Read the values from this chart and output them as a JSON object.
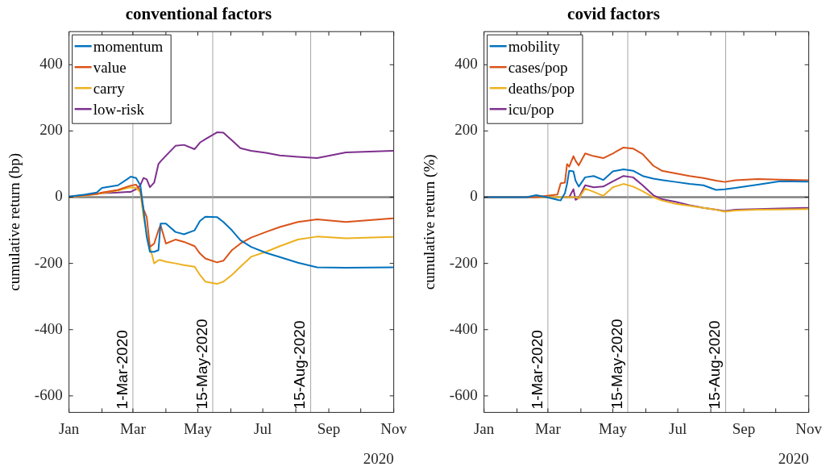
{
  "chart_data": [
    {
      "type": "line",
      "title": "conventional factors",
      "ylabel": "cumulative return (bp)",
      "xlabel": "2020",
      "x": [
        "2020-01-01",
        "2020-01-16",
        "2020-01-27",
        "2020-02-01",
        "2020-02-16",
        "2020-02-25",
        "2020-02-28",
        "2020-03-04",
        "2020-03-08",
        "2020-03-11",
        "2020-03-14",
        "2020-03-17",
        "2020-03-21",
        "2020-03-25",
        "2020-03-27",
        "2020-04-01",
        "2020-04-10",
        "2020-04-18",
        "2020-04-28",
        "2020-05-03",
        "2020-05-08",
        "2020-05-19",
        "2020-05-25",
        "2020-06-02",
        "2020-06-10",
        "2020-06-20",
        "2020-07-04",
        "2020-07-17",
        "2020-08-03",
        "2020-08-21",
        "2020-09-17",
        "2020-10-31"
      ],
      "series": [
        {
          "name": "momentum",
          "color": "#0072bd",
          "values": [
            2,
            8,
            14,
            28,
            36,
            55,
            62,
            58,
            36,
            -40,
            -120,
            -165,
            -165,
            -160,
            -80,
            -80,
            -105,
            -112,
            -100,
            -72,
            -59,
            -60,
            -75,
            -100,
            -130,
            -150,
            -168,
            -181,
            -198,
            -212,
            -213,
            -212
          ]
        },
        {
          "name": "value",
          "color": "#d95319",
          "values": [
            1,
            6,
            10,
            14,
            22,
            32,
            35,
            38,
            20,
            -36,
            -60,
            -150,
            -140,
            -100,
            -84,
            -140,
            -128,
            -135,
            -148,
            -170,
            -185,
            -197,
            -192,
            -160,
            -140,
            -122,
            -105,
            -90,
            -75,
            -67,
            -75,
            -64
          ]
        },
        {
          "name": "carry",
          "color": "#edb120",
          "values": [
            0,
            5,
            9,
            12,
            20,
            28,
            30,
            28,
            15,
            -60,
            -110,
            -150,
            -200,
            -190,
            -190,
            -195,
            -200,
            -205,
            -210,
            -235,
            -255,
            -262,
            -255,
            -235,
            -210,
            -180,
            -165,
            -148,
            -128,
            -119,
            -124,
            -120
          ]
        },
        {
          "name": "low-risk",
          "color": "#7e2f8e",
          "values": [
            null,
            null,
            10,
            12,
            14,
            16,
            16,
            24,
            36,
            58,
            54,
            30,
            44,
            100,
            108,
            125,
            155,
            158,
            145,
            165,
            175,
            196,
            195,
            172,
            148,
            140,
            134,
            126,
            122,
            118,
            135,
            140
          ]
        }
      ],
      "xlim": [
        "2020-01-01",
        "2020-11-01"
      ],
      "xticks": [
        {
          "value": "2020-01-01",
          "label": "Jan"
        },
        {
          "value": "2020-02-01",
          "label": null
        },
        {
          "value": "2020-03-01",
          "label": "Mar"
        },
        {
          "value": "2020-04-01",
          "label": null
        },
        {
          "value": "2020-05-01",
          "label": "May"
        },
        {
          "value": "2020-06-01",
          "label": null
        },
        {
          "value": "2020-07-01",
          "label": "Jul"
        },
        {
          "value": "2020-08-01",
          "label": null
        },
        {
          "value": "2020-09-01",
          "label": "Sep"
        },
        {
          "value": "2020-10-01",
          "label": null
        },
        {
          "value": "2020-11-01",
          "label": "Nov"
        }
      ],
      "ylim": [
        -650,
        500
      ],
      "yticks": [
        -600,
        -400,
        -200,
        0,
        200,
        400
      ],
      "ref_lines": [
        {
          "axis": "y",
          "value": 0,
          "color": "#808080"
        },
        {
          "axis": "x",
          "value": "2020-03-01",
          "label": "1-Mar-2020",
          "color": "#a6a6a6"
        },
        {
          "axis": "x",
          "value": "2020-05-15",
          "label": "15-May-2020",
          "color": "#a6a6a6"
        },
        {
          "axis": "x",
          "value": "2020-08-15",
          "label": "15-Aug-2020",
          "color": "#a6a6a6"
        }
      ],
      "grid": false,
      "legend": "top left",
      "marker": "none",
      "line_style": "solid"
    },
    {
      "type": "line",
      "title": "covid factors",
      "ylabel": "cumulative return (%)",
      "xlabel": "2020",
      "x": [
        "2020-01-01",
        "2020-02-10",
        "2020-02-19",
        "2020-02-29",
        "2020-03-10",
        "2020-03-13",
        "2020-03-17",
        "2020-03-19",
        "2020-03-21",
        "2020-03-25",
        "2020-03-27",
        "2020-03-30",
        "2020-04-05",
        "2020-04-13",
        "2020-04-22",
        "2020-05-01",
        "2020-05-11",
        "2020-05-20",
        "2020-05-29",
        "2020-06-08",
        "2020-06-16",
        "2020-06-29",
        "2020-07-12",
        "2020-07-25",
        "2020-08-06",
        "2020-08-14",
        "2020-08-24",
        "2020-09-14",
        "2020-10-05",
        "2020-10-31"
      ],
      "series": [
        {
          "name": "mobility",
          "color": "#0072bd",
          "values": [
            0,
            0,
            6,
            0,
            -8,
            -10,
            12,
            40,
            80,
            78,
            50,
            32,
            60,
            64,
            52,
            78,
            84,
            80,
            64,
            56,
            52,
            46,
            40,
            36,
            22,
            24,
            28,
            38,
            48,
            47
          ]
        },
        {
          "name": "cases/pop",
          "color": "#d95319",
          "values": [
            0,
            0,
            0,
            4,
            8,
            42,
            44,
            100,
            92,
            124,
            110,
            96,
            132,
            124,
            118,
            132,
            150,
            147,
            130,
            95,
            80,
            72,
            64,
            58,
            50,
            46,
            51,
            55,
            53,
            51
          ]
        },
        {
          "name": "deaths/pop",
          "color": "#edb120",
          "values": [
            null,
            null,
            0,
            0,
            0,
            0,
            0,
            0,
            0,
            0,
            0,
            -4,
            26,
            16,
            4,
            30,
            40,
            32,
            18,
            0,
            -10,
            -20,
            -26,
            -32,
            -38,
            -44,
            -40,
            -38,
            -37,
            -36
          ]
        },
        {
          "name": "icu/pop",
          "color": "#7e2f8e",
          "values": [
            null,
            null,
            null,
            null,
            null,
            null,
            0,
            0,
            0,
            24,
            -8,
            -2,
            36,
            30,
            32,
            48,
            64,
            60,
            36,
            6,
            -6,
            -14,
            -24,
            -32,
            -38,
            -42,
            -38,
            -36,
            -34,
            -32
          ]
        }
      ],
      "xlim": [
        "2020-01-01",
        "2020-11-01"
      ],
      "xticks": [
        {
          "value": "2020-01-01",
          "label": "Jan"
        },
        {
          "value": "2020-02-01",
          "label": null
        },
        {
          "value": "2020-03-01",
          "label": "Mar"
        },
        {
          "value": "2020-04-01",
          "label": null
        },
        {
          "value": "2020-05-01",
          "label": "May"
        },
        {
          "value": "2020-06-01",
          "label": null
        },
        {
          "value": "2020-07-01",
          "label": "Jul"
        },
        {
          "value": "2020-08-01",
          "label": null
        },
        {
          "value": "2020-09-01",
          "label": "Sep"
        },
        {
          "value": "2020-10-01",
          "label": null
        },
        {
          "value": "2020-11-01",
          "label": "Nov"
        }
      ],
      "ylim": [
        -650,
        500
      ],
      "yticks": [
        -600,
        -400,
        -200,
        0,
        200,
        400
      ],
      "ref_lines": [
        {
          "axis": "y",
          "value": 0,
          "color": "#808080"
        },
        {
          "axis": "x",
          "value": "2020-03-01",
          "label": "1-Mar-2020",
          "color": "#a6a6a6"
        },
        {
          "axis": "x",
          "value": "2020-05-15",
          "label": "15-May-2020",
          "color": "#a6a6a6"
        },
        {
          "axis": "x",
          "value": "2020-08-15",
          "label": "15-Aug-2020",
          "color": "#a6a6a6"
        }
      ],
      "grid": false,
      "legend": "top left",
      "marker": "none",
      "line_style": "solid"
    }
  ]
}
